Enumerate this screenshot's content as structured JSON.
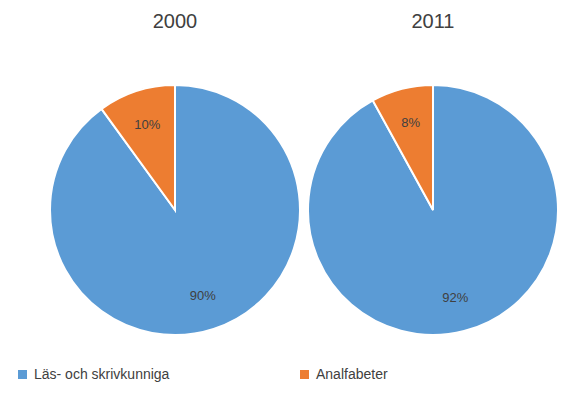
{
  "chart_data": [
    {
      "type": "pie",
      "title": "2000",
      "categories": [
        "Läs- och skrivkunniga",
        "Analfabeter"
      ],
      "values": [
        90,
        10
      ],
      "value_labels": [
        "90%",
        "10%"
      ],
      "colors": [
        "#5b9bd5",
        "#ed7d31"
      ],
      "data_labels": true,
      "legend": "bottom"
    },
    {
      "type": "pie",
      "title": "2011",
      "categories": [
        "Läs- och skrivkunniga",
        "Analfabeter"
      ],
      "values": [
        92,
        8
      ],
      "value_labels": [
        "92%",
        "8%"
      ],
      "colors": [
        "#5b9bd5",
        "#ed7d31"
      ],
      "data_labels": true,
      "legend": "bottom"
    }
  ]
}
